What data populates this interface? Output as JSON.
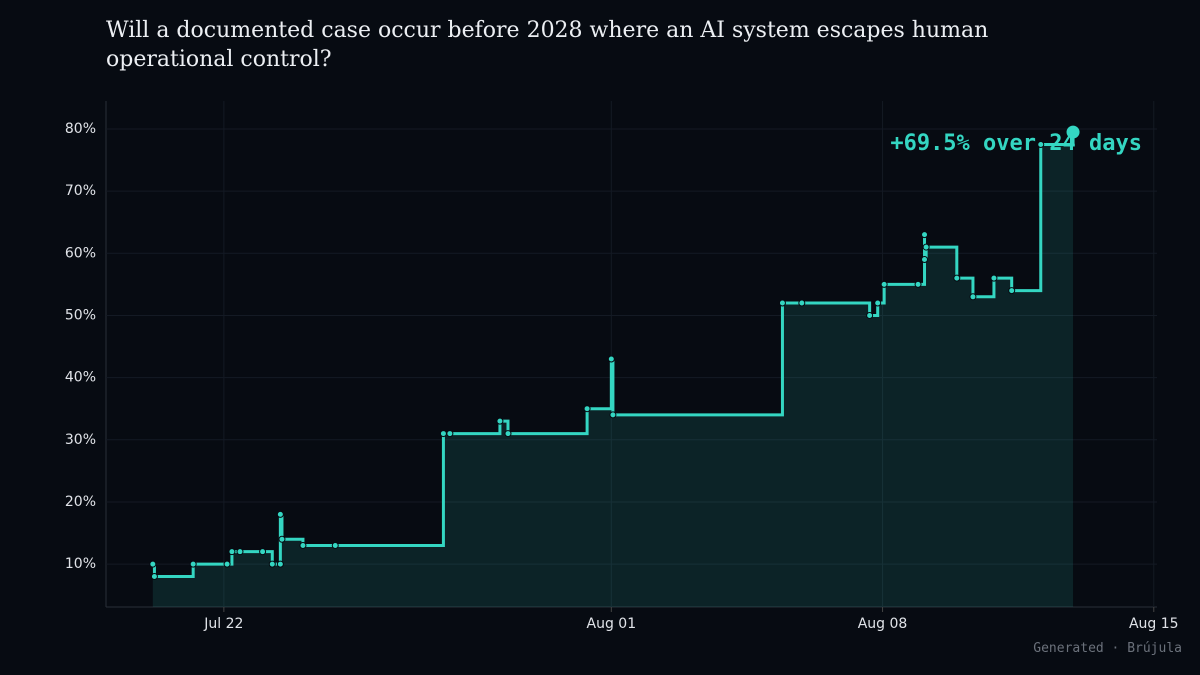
{
  "chart_data": {
    "type": "step",
    "title": "Will a documented case occur before 2028 where an AI system escapes human operational control?",
    "annotation": "+69.5% over 24 days",
    "footer": "Generated · Brújula",
    "color": "#34d6c2",
    "grid": true,
    "x": [
      "07-20T04",
      "07-20T05",
      "07-21T05",
      "07-22T02",
      "07-22T05",
      "07-22T10",
      "07-23T00",
      "07-23T06",
      "07-23T11",
      "07-23T11",
      "07-23T12",
      "07-24T01",
      "07-24T21",
      "07-27T16",
      "07-27T20",
      "07-29T03",
      "07-29T08",
      "07-31T09",
      "08-01T00",
      "08-01T01",
      "08-05T10",
      "08-05T22",
      "08-07T16",
      "08-07T21",
      "08-08T01",
      "08-08T22",
      "08-09T02",
      "08-09T02",
      "08-09T03",
      "08-09T22",
      "08-10T08",
      "08-10T21",
      "08-11T08",
      "08-12T02",
      "08-12T22"
    ],
    "values": [
      10,
      8,
      10,
      10,
      12,
      12,
      12,
      10,
      10,
      18,
      14,
      13,
      13,
      31,
      31,
      33,
      31,
      35,
      43,
      34,
      52,
      52,
      50,
      52,
      55,
      55,
      63,
      59,
      61,
      56,
      53,
      56,
      54,
      77.5,
      79.5
    ],
    "xlim": [
      "07-18T23",
      "08-15T02"
    ],
    "xticks": [
      {
        "value": "07-22T00",
        "label": "Jul 22"
      },
      {
        "value": "08-01T00",
        "label": "Aug 01"
      },
      {
        "value": "08-08T00",
        "label": "Aug 08"
      },
      {
        "value": "08-15T00",
        "label": "Aug 15"
      }
    ],
    "ylim": [
      3.1,
      84.5
    ],
    "yticks": [
      {
        "value": 10,
        "label": "10%"
      },
      {
        "value": 20,
        "label": "20%"
      },
      {
        "value": 30,
        "label": "30%"
      },
      {
        "value": 40,
        "label": "40%"
      },
      {
        "value": 50,
        "label": "50%"
      },
      {
        "value": 60,
        "label": "60%"
      },
      {
        "value": 70,
        "label": "70%"
      },
      {
        "value": 80,
        "label": "80%"
      }
    ]
  }
}
